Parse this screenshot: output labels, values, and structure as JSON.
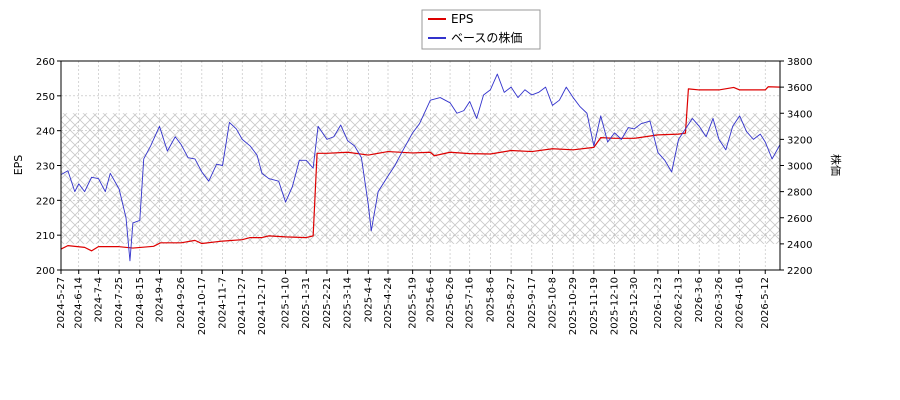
{
  "chart_data": {
    "type": "line",
    "legend": {
      "placement": "top-center",
      "items": [
        "EPS",
        "ベースの株価"
      ]
    },
    "colors": {
      "eps": "#dd0000",
      "price": "#3333cc",
      "hatch": "#c8c8c8",
      "grid": "#bbbbbb"
    },
    "grid": true,
    "y_left": {
      "label": "EPS",
      "range": [
        200,
        260
      ],
      "ticks": [
        "200",
        "210",
        "220",
        "230",
        "240",
        "250",
        "260"
      ]
    },
    "y_right": {
      "label": "株価",
      "range": [
        2200,
        3800
      ],
      "ticks": [
        "2200",
        "2400",
        "2600",
        "2800",
        "3000",
        "3200",
        "3400",
        "3600",
        "3800"
      ]
    },
    "x_range": [
      "2024-05-27",
      "2026-05-27"
    ],
    "x_ticks": [
      "2024-5-27",
      "2024-6-14",
      "2024-7-4",
      "2024-7-25",
      "2024-8-15",
      "2024-9-4",
      "2024-9-26",
      "2024-10-17",
      "2024-11-7",
      "2024-11-27",
      "2024-12-17",
      "2025-1-10",
      "2025-1-31",
      "2025-2-21",
      "2025-3-14",
      "2025-4-4",
      "2025-4-24",
      "2025-5-19",
      "2025-6-6",
      "2025-6-26",
      "2025-7-16",
      "2025-8-6",
      "2025-8-27",
      "2025-9-17",
      "2025-10-8",
      "2025-10-29",
      "2025-11-19",
      "2025-12-10",
      "2025-12-30",
      "2026-1-23",
      "2026-2-13",
      "2026-3-6",
      "2026-3-26",
      "2026-4-16",
      "2026-5-12"
    ],
    "hatch_band_price": [
      2400,
      3400
    ],
    "series": [
      {
        "name": "EPS",
        "axis": "left",
        "points": [
          [
            "2024-05-27",
            206.0
          ],
          [
            "2024-06-03",
            207.0
          ],
          [
            "2024-06-20",
            206.5
          ],
          [
            "2024-06-27",
            205.5
          ],
          [
            "2024-07-04",
            206.7
          ],
          [
            "2024-07-25",
            206.7
          ],
          [
            "2024-08-08",
            206.3
          ],
          [
            "2024-08-29",
            206.8
          ],
          [
            "2024-09-05",
            207.8
          ],
          [
            "2024-09-26",
            207.8
          ],
          [
            "2024-10-10",
            208.5
          ],
          [
            "2024-10-17",
            207.6
          ],
          [
            "2024-11-07",
            208.3
          ],
          [
            "2024-11-27",
            208.7
          ],
          [
            "2024-12-05",
            209.3
          ],
          [
            "2024-12-17",
            209.3
          ],
          [
            "2024-12-24",
            209.8
          ],
          [
            "2025-01-10",
            209.5
          ],
          [
            "2025-01-31",
            209.3
          ],
          [
            "2025-02-07",
            209.8
          ],
          [
            "2025-02-11",
            233.5
          ],
          [
            "2025-02-21",
            233.5
          ],
          [
            "2025-03-14",
            233.8
          ],
          [
            "2025-04-04",
            233.0
          ],
          [
            "2025-04-24",
            234.0
          ],
          [
            "2025-05-19",
            233.6
          ],
          [
            "2025-06-06",
            233.8
          ],
          [
            "2025-06-10",
            232.8
          ],
          [
            "2025-06-26",
            233.8
          ],
          [
            "2025-07-16",
            233.4
          ],
          [
            "2025-08-06",
            233.3
          ],
          [
            "2025-08-27",
            234.3
          ],
          [
            "2025-09-17",
            234.0
          ],
          [
            "2025-10-08",
            234.8
          ],
          [
            "2025-10-29",
            234.5
          ],
          [
            "2025-11-19",
            235.2
          ],
          [
            "2025-11-26",
            238.0
          ],
          [
            "2025-12-10",
            237.8
          ],
          [
            "2025-12-30",
            237.8
          ],
          [
            "2026-01-23",
            238.8
          ],
          [
            "2026-02-13",
            239.0
          ],
          [
            "2026-02-20",
            239.3
          ],
          [
            "2026-02-23",
            252.0
          ],
          [
            "2026-03-06",
            251.7
          ],
          [
            "2026-03-26",
            251.7
          ],
          [
            "2026-04-10",
            252.4
          ],
          [
            "2026-04-16",
            251.7
          ],
          [
            "2026-05-12",
            251.7
          ],
          [
            "2026-05-15",
            252.6
          ],
          [
            "2026-05-27",
            252.5
          ]
        ]
      },
      {
        "name": "ベースの株価",
        "axis": "right",
        "points": [
          [
            "2024-05-27",
            2930
          ],
          [
            "2024-06-03",
            2960
          ],
          [
            "2024-06-10",
            2800
          ],
          [
            "2024-06-14",
            2860
          ],
          [
            "2024-06-20",
            2800
          ],
          [
            "2024-06-27",
            2910
          ],
          [
            "2024-07-04",
            2900
          ],
          [
            "2024-07-11",
            2800
          ],
          [
            "2024-07-16",
            2940
          ],
          [
            "2024-07-25",
            2820
          ],
          [
            "2024-08-01",
            2600
          ],
          [
            "2024-08-05",
            2270
          ],
          [
            "2024-08-08",
            2560
          ],
          [
            "2024-08-15",
            2580
          ],
          [
            "2024-08-19",
            3050
          ],
          [
            "2024-08-26",
            3150
          ],
          [
            "2024-09-04",
            3300
          ],
          [
            "2024-09-12",
            3110
          ],
          [
            "2024-09-20",
            3220
          ],
          [
            "2024-09-26",
            3160
          ],
          [
            "2024-10-03",
            3060
          ],
          [
            "2024-10-10",
            3050
          ],
          [
            "2024-10-17",
            2950
          ],
          [
            "2024-10-24",
            2880
          ],
          [
            "2024-11-01",
            3010
          ],
          [
            "2024-11-07",
            3000
          ],
          [
            "2024-11-14",
            3330
          ],
          [
            "2024-11-21",
            3280
          ],
          [
            "2024-11-27",
            3200
          ],
          [
            "2024-12-05",
            3150
          ],
          [
            "2024-12-12",
            3080
          ],
          [
            "2024-12-17",
            2940
          ],
          [
            "2024-12-24",
            2900
          ],
          [
            "2025-01-03",
            2880
          ],
          [
            "2025-01-10",
            2720
          ],
          [
            "2025-01-17",
            2840
          ],
          [
            "2025-01-24",
            3040
          ],
          [
            "2025-01-31",
            3040
          ],
          [
            "2025-02-07",
            2980
          ],
          [
            "2025-02-12",
            3300
          ],
          [
            "2025-02-21",
            3200
          ],
          [
            "2025-02-28",
            3220
          ],
          [
            "2025-03-07",
            3310
          ],
          [
            "2025-03-14",
            3190
          ],
          [
            "2025-03-21",
            3150
          ],
          [
            "2025-03-28",
            3060
          ],
          [
            "2025-04-04",
            2700
          ],
          [
            "2025-04-07",
            2500
          ],
          [
            "2025-04-14",
            2800
          ],
          [
            "2025-04-24",
            2920
          ],
          [
            "2025-05-01",
            3000
          ],
          [
            "2025-05-08",
            3100
          ],
          [
            "2025-05-19",
            3250
          ],
          [
            "2025-05-26",
            3320
          ],
          [
            "2025-06-06",
            3500
          ],
          [
            "2025-06-16",
            3520
          ],
          [
            "2025-06-26",
            3480
          ],
          [
            "2025-07-03",
            3400
          ],
          [
            "2025-07-10",
            3420
          ],
          [
            "2025-07-16",
            3490
          ],
          [
            "2025-07-23",
            3360
          ],
          [
            "2025-07-30",
            3540
          ],
          [
            "2025-08-06",
            3580
          ],
          [
            "2025-08-13",
            3700
          ],
          [
            "2025-08-20",
            3560
          ],
          [
            "2025-08-27",
            3600
          ],
          [
            "2025-09-03",
            3520
          ],
          [
            "2025-09-10",
            3580
          ],
          [
            "2025-09-17",
            3540
          ],
          [
            "2025-09-24",
            3560
          ],
          [
            "2025-10-01",
            3600
          ],
          [
            "2025-10-08",
            3460
          ],
          [
            "2025-10-15",
            3500
          ],
          [
            "2025-10-22",
            3600
          ],
          [
            "2025-10-29",
            3520
          ],
          [
            "2025-11-05",
            3450
          ],
          [
            "2025-11-12",
            3400
          ],
          [
            "2025-11-19",
            3150
          ],
          [
            "2025-11-26",
            3380
          ],
          [
            "2025-12-03",
            3180
          ],
          [
            "2025-12-10",
            3250
          ],
          [
            "2025-12-17",
            3200
          ],
          [
            "2025-12-24",
            3290
          ],
          [
            "2025-12-30",
            3280
          ],
          [
            "2026-01-06",
            3320
          ],
          [
            "2026-01-15",
            3340
          ],
          [
            "2026-01-23",
            3100
          ],
          [
            "2026-01-30",
            3040
          ],
          [
            "2026-02-06",
            2950
          ],
          [
            "2026-02-13",
            3200
          ],
          [
            "2026-02-20",
            3280
          ],
          [
            "2026-02-27",
            3360
          ],
          [
            "2026-03-06",
            3300
          ],
          [
            "2026-03-13",
            3220
          ],
          [
            "2026-03-20",
            3360
          ],
          [
            "2026-03-26",
            3200
          ],
          [
            "2026-04-02",
            3120
          ],
          [
            "2026-04-09",
            3300
          ],
          [
            "2026-04-16",
            3380
          ],
          [
            "2026-04-23",
            3260
          ],
          [
            "2026-04-30",
            3200
          ],
          [
            "2026-05-07",
            3240
          ],
          [
            "2026-05-12",
            3180
          ],
          [
            "2026-05-19",
            3050
          ],
          [
            "2026-05-27",
            3160
          ]
        ]
      }
    ]
  }
}
